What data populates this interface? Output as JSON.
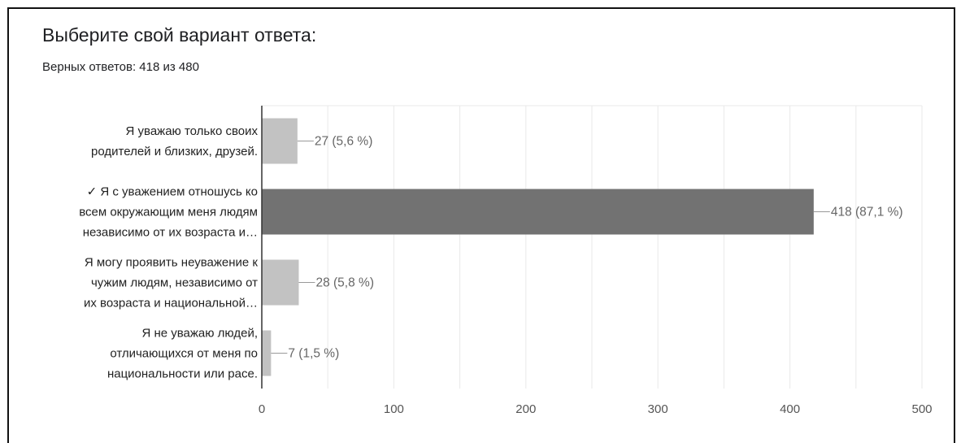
{
  "header": {
    "title": "Выберите свой вариант ответа:",
    "subtitle": "Верных ответов: 418 из 480"
  },
  "colors": {
    "bar_default": "#c2c2c2",
    "bar_correct": "#727272",
    "grid": "#e9e9e9",
    "axis": "#333333"
  },
  "chart_data": {
    "type": "bar",
    "orientation": "horizontal",
    "categories": [
      [
        "Я уважаю только своих",
        "родителей и близких, друзей."
      ],
      [
        "✓ Я с уважением отношусь ко",
        "всем окружающим меня людям",
        "независимо от их возраста и…"
      ],
      [
        "Я могу проявить неуважение к",
        "чужим людям, независимо от",
        "их возраста и национальной…"
      ],
      [
        "Я не уважаю людей,",
        "отличающихся от меня по",
        "национальности или расе."
      ]
    ],
    "values": [
      27,
      418,
      28,
      7
    ],
    "data_labels": [
      "27 (5,6 %)",
      "418 (87,1 %)",
      "28 (5,8 %)",
      "7 (1,5 %)"
    ],
    "correct_index": 1,
    "xlim": [
      0,
      500
    ],
    "x_ticks": [
      0,
      100,
      200,
      300,
      400,
      500
    ],
    "grid": true,
    "legend": "none"
  }
}
